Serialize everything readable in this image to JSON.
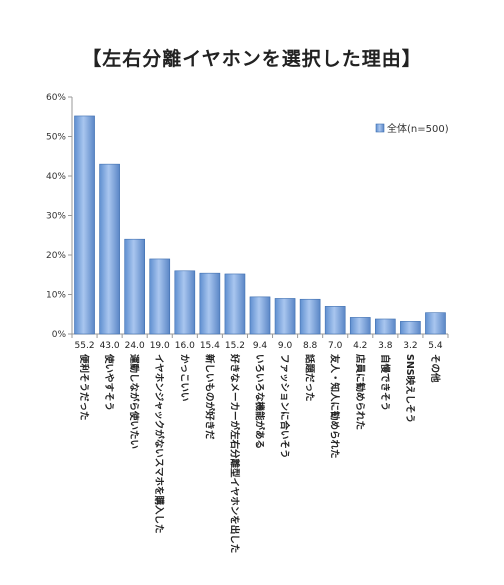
{
  "chart_data": {
    "type": "bar",
    "title": "【左右分離イヤホンを選択した理由】",
    "categories": [
      "便利そうだった",
      "使いやすそう",
      "運動しながら使いたい",
      "イヤホンジャックがないスマホを購入した",
      "かっこいい",
      "新しいものが好きだ",
      "好きなメーカーが左右分離型イヤホンを出した",
      "いろいろな機能がある",
      "ファッションに合いそう",
      "話題だった",
      "友人・知人に勧められた",
      "店員に勧められた",
      "自慢できそう",
      "SNS映えしそう",
      "その他"
    ],
    "series": [
      {
        "name": "全体(n=500)",
        "values": [
          55.2,
          43.0,
          24.0,
          19.0,
          16.0,
          15.4,
          15.2,
          9.4,
          9.0,
          8.8,
          7.0,
          4.2,
          3.8,
          3.2,
          5.4
        ]
      }
    ],
    "value_labels": [
      "55.2",
      "43.0",
      "24.0",
      "19.0",
      "16.0",
      "15.4",
      "15.2",
      "9.4",
      "9.0",
      "8.8",
      "7.0",
      "4.2",
      "3.8",
      "3.2",
      "5.4"
    ],
    "ylim": [
      0,
      60
    ],
    "yticks": [
      "0%",
      "10%",
      "20%",
      "30%",
      "40%",
      "50%",
      "60%"
    ],
    "grid": false,
    "legend_position": "top-right",
    "colors": {
      "bar": "#7da7dc",
      "bar_edge": "#3f6fb0",
      "axis": "#999999"
    }
  }
}
